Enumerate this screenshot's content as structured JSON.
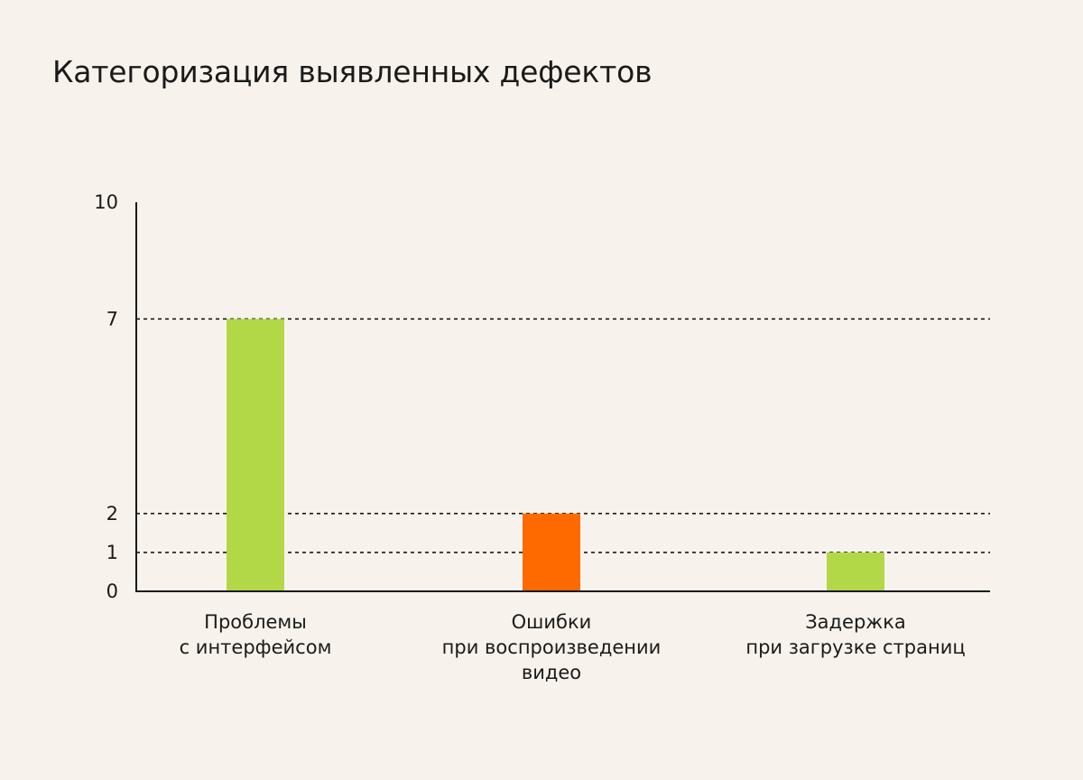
{
  "page": {
    "background": "#F7F3EC"
  },
  "chart_data": {
    "type": "bar",
    "title": "Категоризация выявленных дефектов",
    "xlabel": "",
    "ylabel": "",
    "ylim": [
      0,
      10
    ],
    "y_ticks": [
      0,
      1,
      2,
      7,
      10
    ],
    "reference_lines": [
      1,
      2,
      7
    ],
    "grid": false,
    "categories": [
      [
        "Проблемы",
        "с интерфейсом"
      ],
      [
        "Ошибки",
        "при воспроизведении",
        "видео"
      ],
      [
        "Задержка",
        "при загрузке страниц"
      ]
    ],
    "values": [
      7,
      2,
      1
    ],
    "bar_colors": [
      "#B2D847",
      "#FF6A00",
      "#B2D847"
    ],
    "axis_color": "#1A1A1A",
    "text_color": "#1A1A1A"
  }
}
